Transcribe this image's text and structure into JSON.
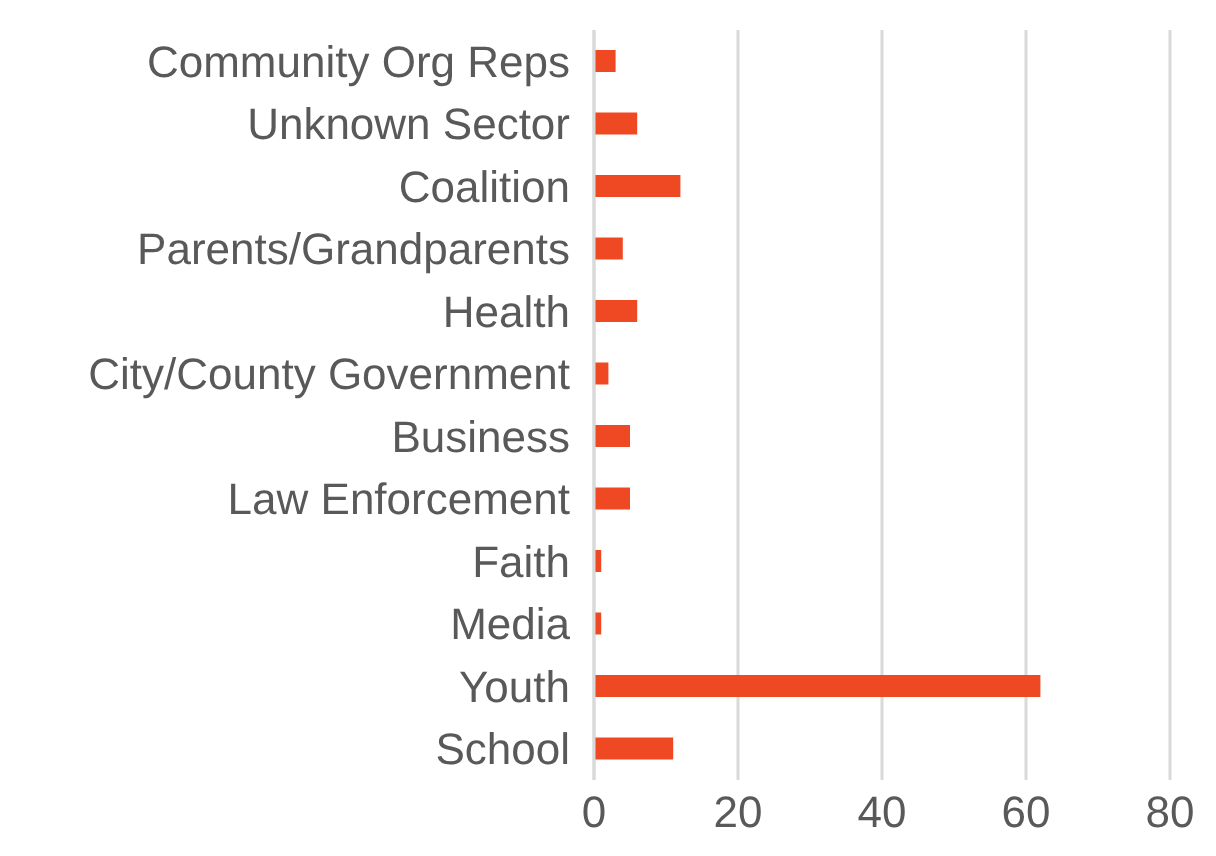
{
  "chart_data": {
    "type": "bar",
    "orientation": "horizontal",
    "categories": [
      "Community Org Reps",
      "Unknown Sector",
      "Coalition",
      "Parents/Grandparents",
      "Health",
      "City/County Government",
      "Business",
      "Law Enforcement",
      "Faith",
      "Media",
      "Youth",
      "School"
    ],
    "values": [
      3,
      6,
      12,
      4,
      6,
      2,
      5,
      5,
      1,
      1,
      62,
      11
    ],
    "color": "#ef4923",
    "xlim": [
      0,
      80
    ],
    "xticks": [
      0,
      20,
      40,
      60,
      80
    ],
    "grid": "x"
  }
}
